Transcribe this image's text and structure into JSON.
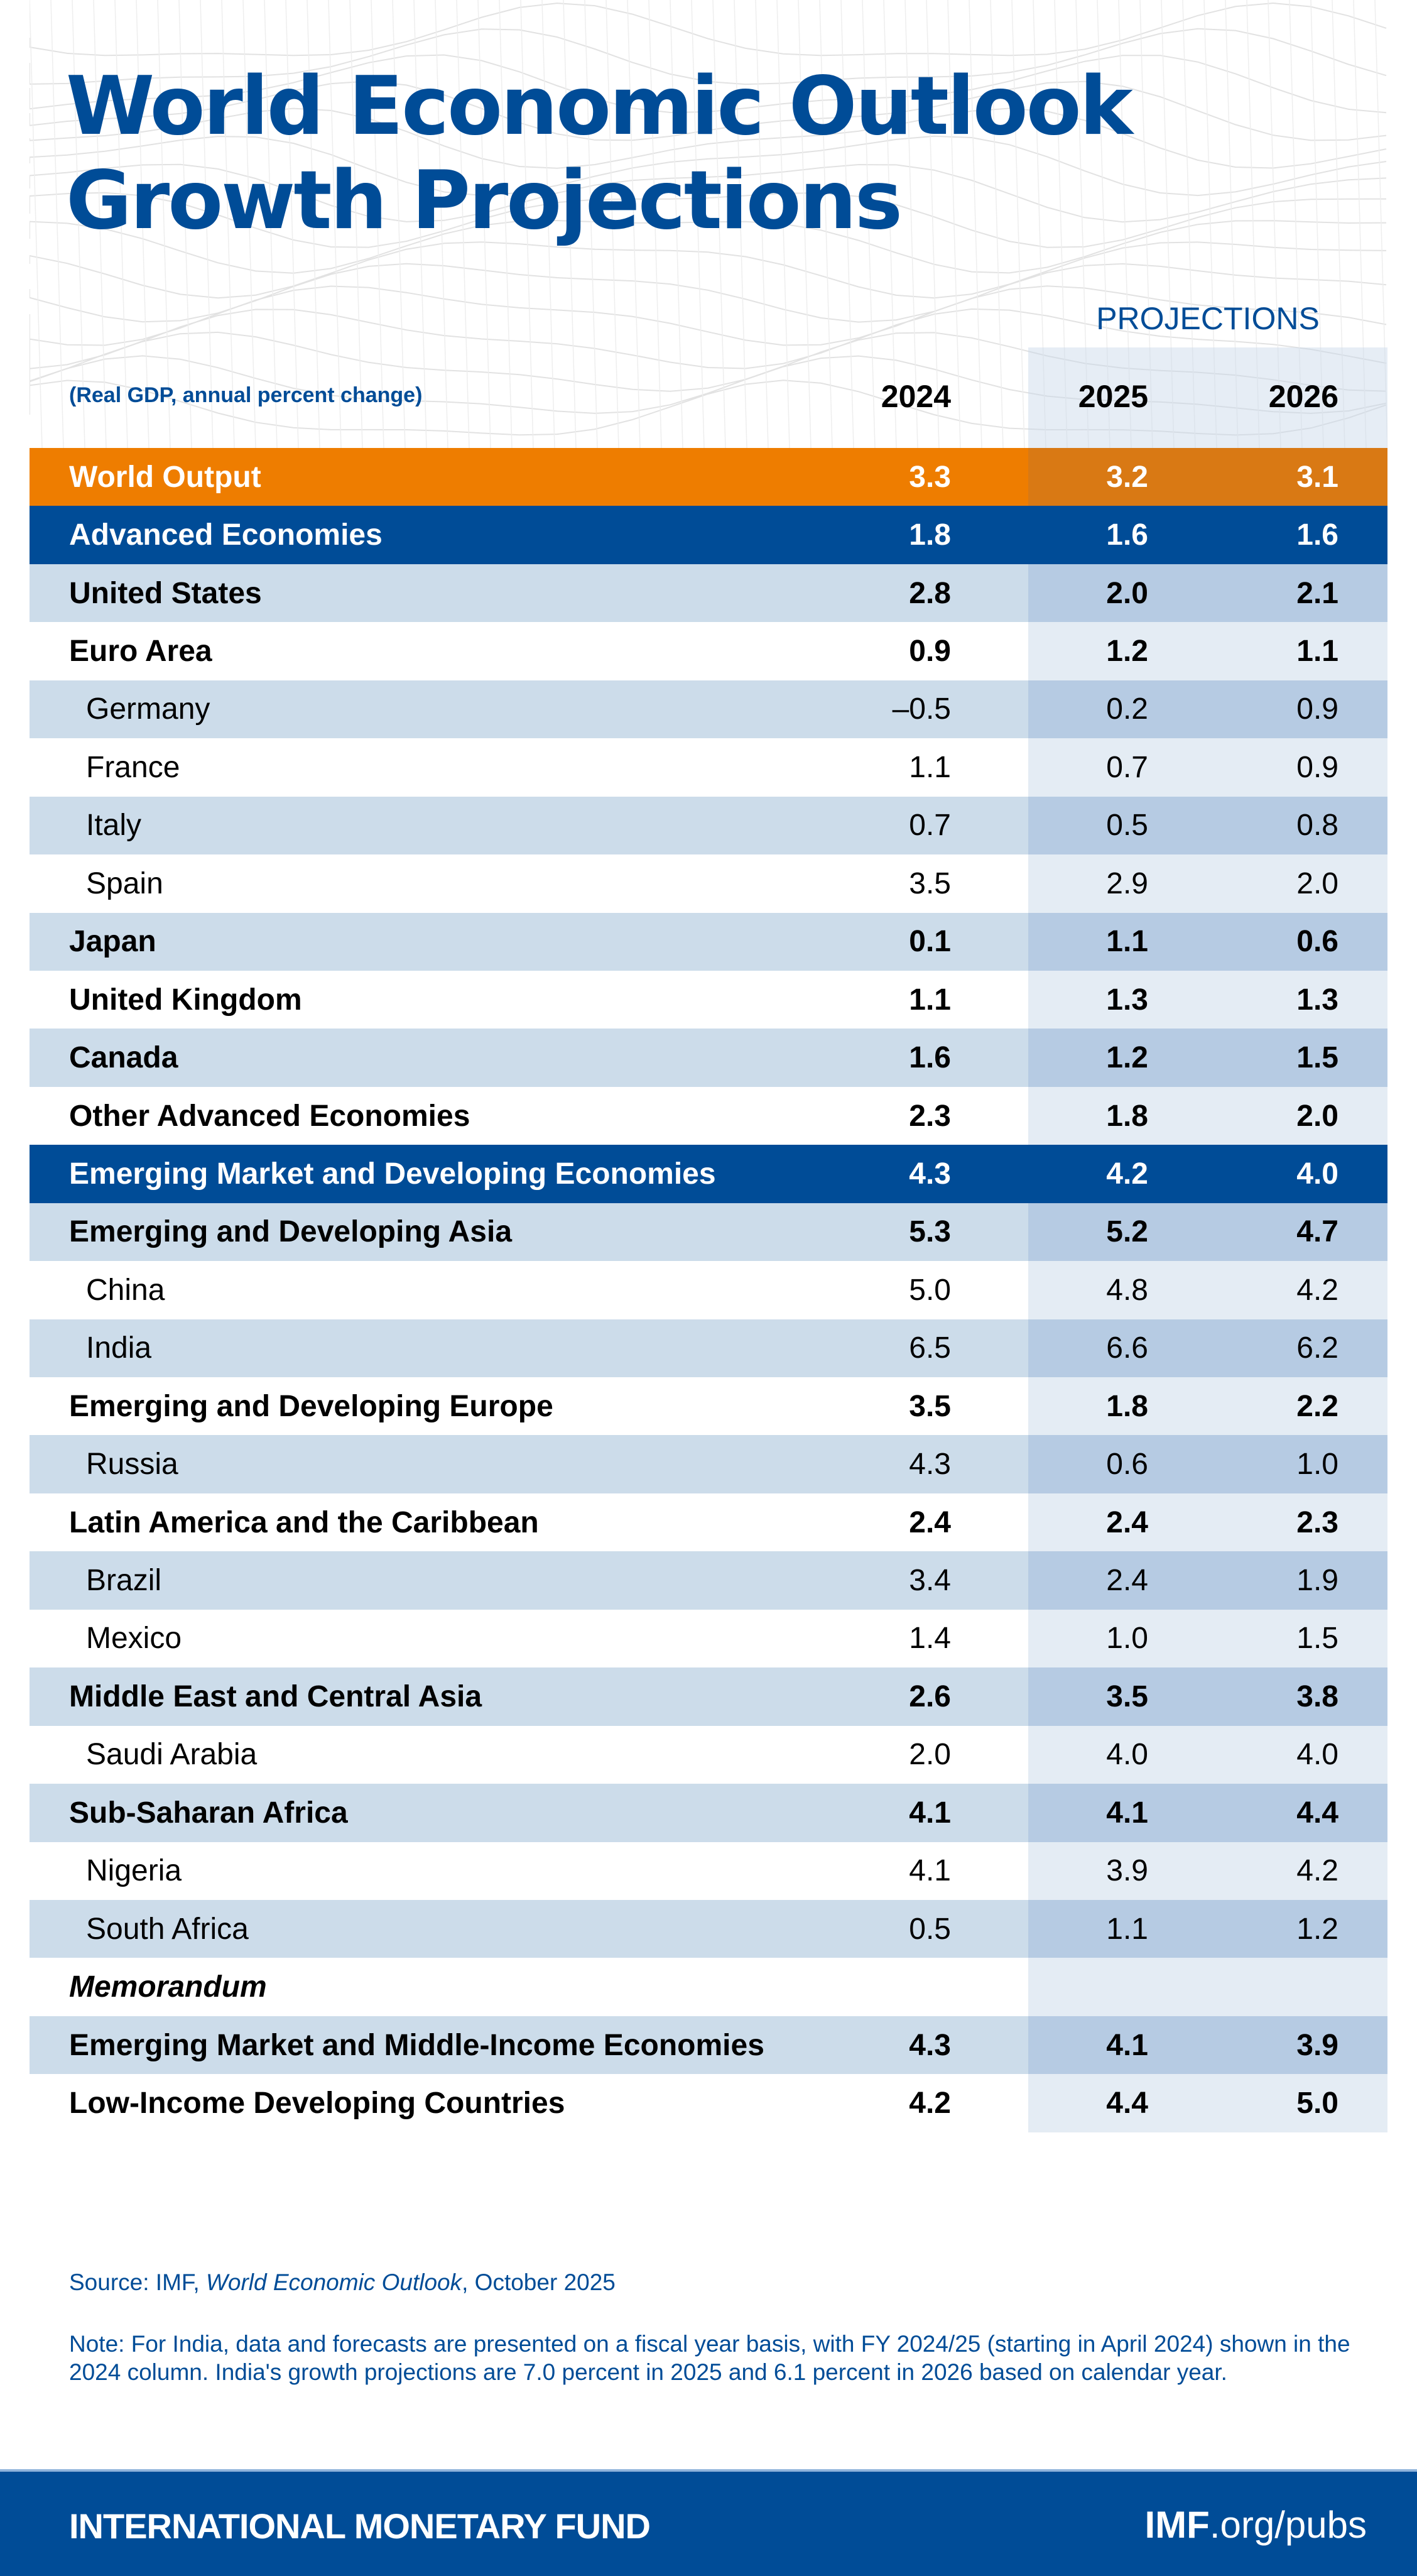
{
  "title": {
    "line1": "World Economic Outlook",
    "line2": "Growth Projections"
  },
  "projections_label": "PROJECTIONS",
  "subtitle": "(Real GDP, annual percent change)",
  "years": [
    "2024",
    "2025",
    "2026"
  ],
  "colors": {
    "brand_blue": "#004c97",
    "orange": "#ee7d00",
    "row_stripe": "#ccdcea",
    "projection_shade": "#b6cbe3"
  },
  "rows": [
    {
      "label": "World Output",
      "values": [
        "3.3",
        "3.2",
        "3.1"
      ],
      "style": "orange"
    },
    {
      "label": "Advanced Economies",
      "values": [
        "1.8",
        "1.6",
        "1.6"
      ],
      "style": "navy"
    },
    {
      "label": "United States",
      "values": [
        "2.8",
        "2.0",
        "2.1"
      ],
      "style": "shaded",
      "bold": true
    },
    {
      "label": "Euro Area",
      "values": [
        "0.9",
        "1.2",
        "1.1"
      ],
      "style": "plain",
      "bold": true
    },
    {
      "label": "Germany",
      "values": [
        "–0.5",
        "0.2",
        "0.9"
      ],
      "style": "shaded",
      "indent": true
    },
    {
      "label": "France",
      "values": [
        "1.1",
        "0.7",
        "0.9"
      ],
      "style": "plain",
      "indent": true
    },
    {
      "label": "Italy",
      "values": [
        "0.7",
        "0.5",
        "0.8"
      ],
      "style": "shaded",
      "indent": true
    },
    {
      "label": "Spain",
      "values": [
        "3.5",
        "2.9",
        "2.0"
      ],
      "style": "plain",
      "indent": true
    },
    {
      "label": "Japan",
      "values": [
        "0.1",
        "1.1",
        "0.6"
      ],
      "style": "shaded",
      "bold": true
    },
    {
      "label": "United Kingdom",
      "values": [
        "1.1",
        "1.3",
        "1.3"
      ],
      "style": "plain",
      "bold": true
    },
    {
      "label": "Canada",
      "values": [
        "1.6",
        "1.2",
        "1.5"
      ],
      "style": "shaded",
      "bold": true
    },
    {
      "label": "Other Advanced Economies",
      "values": [
        "2.3",
        "1.8",
        "2.0"
      ],
      "style": "plain",
      "bold": true
    },
    {
      "label": "Emerging Market and Developing Economies",
      "values": [
        "4.3",
        "4.2",
        "4.0"
      ],
      "style": "navy"
    },
    {
      "label": "Emerging and Developing Asia",
      "values": [
        "5.3",
        "5.2",
        "4.7"
      ],
      "style": "shaded",
      "bold": true
    },
    {
      "label": "China",
      "values": [
        "5.0",
        "4.8",
        "4.2"
      ],
      "style": "plain",
      "indent": true
    },
    {
      "label": "India",
      "values": [
        "6.5",
        "6.6",
        "6.2"
      ],
      "style": "shaded",
      "indent": true
    },
    {
      "label": "Emerging and Developing Europe",
      "values": [
        "3.5",
        "1.8",
        "2.2"
      ],
      "style": "plain",
      "bold": true
    },
    {
      "label": "Russia",
      "values": [
        "4.3",
        "0.6",
        "1.0"
      ],
      "style": "shaded",
      "indent": true
    },
    {
      "label": "Latin America and the Caribbean",
      "values": [
        "2.4",
        "2.4",
        "2.3"
      ],
      "style": "plain",
      "bold": true
    },
    {
      "label": "Brazil",
      "values": [
        "3.4",
        "2.4",
        "1.9"
      ],
      "style": "shaded",
      "indent": true
    },
    {
      "label": "Mexico",
      "values": [
        "1.4",
        "1.0",
        "1.5"
      ],
      "style": "plain",
      "indent": true
    },
    {
      "label": "Middle East and Central Asia",
      "values": [
        "2.6",
        "3.5",
        "3.8"
      ],
      "style": "shaded",
      "bold": true
    },
    {
      "label": "Saudi Arabia",
      "values": [
        "2.0",
        "4.0",
        "4.0"
      ],
      "style": "plain",
      "indent": true
    },
    {
      "label": "Sub-Saharan Africa",
      "values": [
        "4.1",
        "4.1",
        "4.4"
      ],
      "style": "shaded",
      "bold": true
    },
    {
      "label": "Nigeria",
      "values": [
        "4.1",
        "3.9",
        "4.2"
      ],
      "style": "plain",
      "indent": true
    },
    {
      "label": "South Africa",
      "values": [
        "0.5",
        "1.1",
        "1.2"
      ],
      "style": "shaded",
      "indent": true
    },
    {
      "label": "Memorandum",
      "values": [
        "",
        "",
        ""
      ],
      "style": "plain",
      "italic": true
    },
    {
      "label": "Emerging Market and Middle-Income Economies",
      "values": [
        "4.3",
        "4.1",
        "3.9"
      ],
      "style": "shaded",
      "bold": true
    },
    {
      "label": "Low-Income Developing Countries",
      "values": [
        "4.2",
        "4.4",
        "5.0"
      ],
      "style": "plain",
      "bold": true
    }
  ],
  "source": {
    "prefix": "Source: IMF, ",
    "publication": "World Economic Outlook",
    "suffix": ", October 2025"
  },
  "note": "Note: For India, data and forecasts are presented on a fiscal year basis, with FY 2024/25 (starting in April 2024) shown in the 2024 column. India's growth projections are 7.0 percent in 2025 and 6.1 percent in 2026 based on calendar year.",
  "footer": {
    "org": "INTERNATIONAL MONETARY FUND",
    "url_bold": "IMF",
    "url_rest": ".org/pubs"
  }
}
